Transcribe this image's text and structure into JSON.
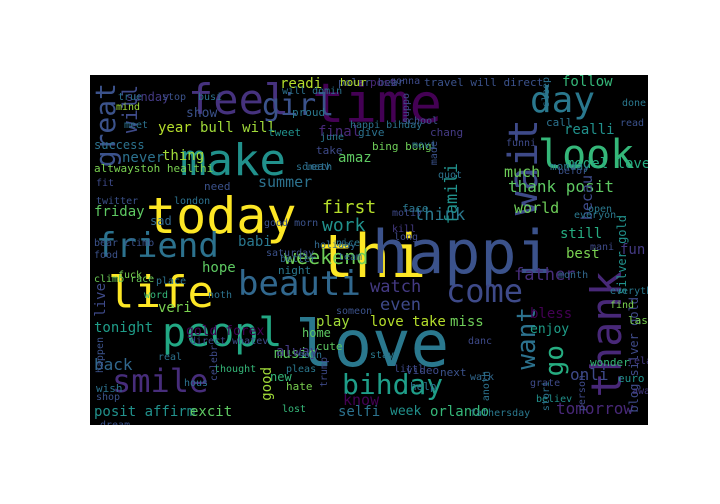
{
  "words": [
    {
      "text": "love",
      "c": "#2a788e"
    },
    {
      "text": "thi",
      "c": "#fde725"
    },
    {
      "text": "happi",
      "c": "#3b528b"
    },
    {
      "text": "today",
      "c": "#fde725"
    },
    {
      "text": "time",
      "c": "#440154"
    },
    {
      "text": "make",
      "c": "#21918c"
    },
    {
      "text": "life",
      "c": "#fde725"
    },
    {
      "text": "feel",
      "c": "#46327e"
    },
    {
      "text": "peopl",
      "c": "#22a884"
    },
    {
      "text": "friend",
      "c": "#2c728e"
    },
    {
      "text": "beauti",
      "c": "#31688e"
    },
    {
      "text": "smile",
      "c": "#472d7b"
    },
    {
      "text": "look",
      "c": "#35b779"
    },
    {
      "text": "day",
      "c": "#2a788e"
    },
    {
      "text": "come",
      "c": "#3e4a89"
    },
    {
      "text": "wait",
      "c": "#3e4a89"
    },
    {
      "text": "thank",
      "c": "#482878"
    },
    {
      "text": "girl",
      "c": "#3b528b"
    },
    {
      "text": "great",
      "c": "#3b528b"
    },
    {
      "text": "bihday",
      "c": "#1f9e89"
    },
    {
      "text": "want",
      "c": "#2c728e"
    },
    {
      "text": "go",
      "c": "#26ad81"
    },
    {
      "text": "weekend",
      "c": "#6ece58"
    },
    {
      "text": "thank posit",
      "c": "#5ec962"
    },
    {
      "text": "think",
      "c": "#2a788e"
    },
    {
      "text": "first",
      "c": "#b5de2b"
    },
    {
      "text": "work",
      "c": "#21918c"
    },
    {
      "text": "know",
      "c": "#440154"
    },
    {
      "text": "watch",
      "c": "#443a83"
    },
    {
      "text": "even",
      "c": "#3e4a89"
    },
    {
      "text": "father",
      "c": "#472d7b"
    },
    {
      "text": "summer",
      "c": "#2c728e"
    },
    {
      "text": "famili",
      "c": "#21918c"
    },
    {
      "text": "world",
      "c": "#6ece58"
    },
    {
      "text": "bull will",
      "c": "#a0da39"
    },
    {
      "text": "year",
      "c": "#b5de2b"
    },
    {
      "text": "thing",
      "c": "#a0da39"
    },
    {
      "text": "babi",
      "c": "#2a788e"
    },
    {
      "text": "hope",
      "c": "#5ec962"
    },
    {
      "text": "tonight",
      "c": "#1f9e89"
    },
    {
      "text": "back",
      "c": "#31688e"
    },
    {
      "text": "veri",
      "c": "#7ad151"
    },
    {
      "text": "music",
      "c": "#5ec962"
    },
    {
      "text": "play",
      "c": "#a0da39"
    },
    {
      "text": "love take",
      "c": "#b5de2b"
    },
    {
      "text": "miss",
      "c": "#6ece58"
    },
    {
      "text": "enjoy",
      "c": "#1f9e89"
    },
    {
      "text": "bless",
      "c": "#440154"
    },
    {
      "text": "best",
      "c": "#7ad151"
    },
    {
      "text": "still",
      "c": "#26ad81"
    },
    {
      "text": "onli",
      "c": "#3e4a89"
    },
    {
      "text": "tomorrow",
      "c": "#482878"
    },
    {
      "text": "week",
      "c": "#21918c"
    },
    {
      "text": "orlando",
      "c": "#35b779"
    },
    {
      "text": "selfi",
      "c": "#2c728e"
    },
    {
      "text": "posit affirm",
      "c": "#21918c"
    },
    {
      "text": "excit",
      "c": "#5ec962"
    },
    {
      "text": "good",
      "c": "#a0da39"
    },
    {
      "text": "new",
      "c": "#35b779"
    },
    {
      "text": "alway",
      "c": "#443a83"
    },
    {
      "text": "gold forex",
      "c": "#440154"
    },
    {
      "text": "blog silver gold",
      "c": "#3e4a89"
    },
    {
      "text": "silver gold",
      "c": "#21918c"
    },
    {
      "text": "live",
      "c": "#3e4a89"
    },
    {
      "text": "friday",
      "c": "#5ec962"
    },
    {
      "text": "never",
      "c": "#2c728e"
    },
    {
      "text": "show",
      "c": "#3b528b"
    },
    {
      "text": "sunday",
      "c": "#443a83"
    },
    {
      "text": "readi",
      "c": "#b5de2b"
    },
    {
      "text": "follow",
      "c": "#35b779"
    },
    {
      "text": "realli",
      "c": "#21918c"
    },
    {
      "text": "model love",
      "c": "#26ad81"
    },
    {
      "text": "final",
      "c": "#482878"
    },
    {
      "text": "amaz",
      "c": "#5ec962"
    },
    {
      "text": "will",
      "c": "#3e4a89"
    },
    {
      "text": "much",
      "c": "#6ece58"
    },
    {
      "text": "becau",
      "c": "#3e4a89"
    },
    {
      "text": "fun",
      "c": "#443a83"
    },
    {
      "text": "take",
      "c": "#3e4a89"
    },
    {
      "text": "home",
      "c": "#5ec962"
    },
    {
      "text": "success",
      "c": "#2c728e"
    },
    {
      "text": "altwaystoh healthi",
      "c": "#7ad151"
    },
    {
      "text": "polar bear",
      "c": "#3b528b"
    },
    {
      "text": "hour",
      "c": "#b5de2b"
    },
    {
      "text": "post",
      "c": "#482878"
    },
    {
      "text": "travel will direct",
      "c": "#3b528b"
    },
    {
      "text": "sad",
      "c": "#31688e"
    },
    {
      "text": "proud",
      "c": "#2a788e"
    },
    {
      "text": "tweet",
      "c": "#21918c"
    },
    {
      "text": "give",
      "c": "#2c728e"
    },
    {
      "text": "chang",
      "c": "#443a83"
    },
    {
      "text": "bing bong",
      "c": "#6ece58"
    },
    {
      "text": "leav",
      "c": "#31688e"
    },
    {
      "text": "face",
      "c": "#2a788e"
    },
    {
      "text": "need",
      "c": "#3b528b"
    },
    {
      "text": "cute",
      "c": "#5ec962"
    },
    {
      "text": "help",
      "c": "#2c728e"
    },
    {
      "text": "next",
      "c": "#3b528b"
    },
    {
      "text": "hate",
      "c": "#7ad151"
    },
    {
      "text": "thought",
      "c": "#35b779"
    },
    {
      "text": "wish",
      "c": "#2c728e"
    },
    {
      "text": "video",
      "c": "#3e4a89"
    },
    {
      "text": "night",
      "c": "#2a788e"
    },
    {
      "text": "holiday",
      "c": "#31688e"
    },
    {
      "text": "saturday",
      "c": "#3b528b"
    },
    {
      "text": "better",
      "c": "#31688e"
    },
    {
      "text": "call",
      "c": "#2c728e"
    },
    {
      "text": "monday",
      "c": "#2a788e"
    },
    {
      "text": "last",
      "c": "#7ad151"
    },
    {
      "text": "euro",
      "c": "#21918c"
    },
    {
      "text": "relax",
      "c": "#443a83"
    },
    {
      "text": "wonder",
      "c": "#35b779"
    },
    {
      "text": "believ",
      "c": "#21918c"
    },
    {
      "text": "fathersday",
      "c": "#2a788e"
    },
    {
      "text": "lost",
      "c": "#35b779"
    },
    {
      "text": "littl",
      "c": "#3e4a89"
    },
    {
      "text": "walk",
      "c": "#31688e"
    },
    {
      "text": "stay",
      "c": "#2a788e"
    },
    {
      "text": "dream",
      "c": "#3b528b"
    },
    {
      "text": "word",
      "c": "#35b779"
    },
    {
      "text": "real",
      "c": "#2c728e"
    },
    {
      "text": "fuck",
      "c": "#7ad151"
    },
    {
      "text": "place",
      "c": "#2c728e"
    },
    {
      "text": "direct whatev",
      "c": "#3e4a89"
    },
    {
      "text": "happen",
      "c": "#3b528b"
    },
    {
      "text": "celebr",
      "c": "#3e4a89"
    },
    {
      "text": "climb race",
      "c": "#6ece58"
    },
    {
      "text": "twitter",
      "c": "#3b528b"
    },
    {
      "text": "true",
      "c": "#2c728e"
    },
    {
      "text": "mind",
      "c": "#a0da39"
    },
    {
      "text": "stop",
      "c": "#3b528b"
    },
    {
      "text": "busi",
      "c": "#2c728e"
    },
    {
      "text": "meet",
      "c": "#2c728e"
    },
    {
      "text": "school",
      "c": "#3b528b"
    },
    {
      "text": "open",
      "c": "#2a788e"
    },
    {
      "text": "everyon",
      "c": "#2a788e"
    },
    {
      "text": "month",
      "c": "#31688e"
    },
    {
      "text": "away",
      "c": "#443a83"
    },
    {
      "text": "find",
      "c": "#7ad151"
    },
    {
      "text": "done",
      "c": "#2a788e"
    },
    {
      "text": "read",
      "c": "#3b528b"
    },
    {
      "text": "long",
      "c": "#3e4a89"
    },
    {
      "text": "movi",
      "c": "#2c728e"
    },
    {
      "text": "made",
      "c": "#3b528b"
    },
    {
      "text": "quot",
      "c": "#2c728e"
    },
    {
      "text": "mani",
      "c": "#3e4a89"
    },
    {
      "text": "hous",
      "c": "#2c728e"
    },
    {
      "text": "trump",
      "c": "#3e4a89"
    },
    {
      "text": "stori",
      "c": "#2c728e"
    },
    {
      "text": "grate",
      "c": "#3e4a89"
    },
    {
      "text": "anoth",
      "c": "#2c728e"
    },
    {
      "text": "everyth",
      "c": "#2a788e"
    },
    {
      "text": "befor",
      "c": "#3b528b"
    },
    {
      "text": "june",
      "c": "#2a788e"
    },
    {
      "text": "gonna",
      "c": "#3e4a89"
    },
    {
      "text": "shop",
      "c": "#3b528b"
    },
    {
      "text": "someth",
      "c": "#2c728e"
    },
    {
      "text": "motiv",
      "c": "#3e4a89"
    },
    {
      "text": "kill",
      "c": "#443a83"
    },
    {
      "text": "danc",
      "c": "#3e4a89"
    },
    {
      "text": "soon",
      "c": "#2c728e"
    },
    {
      "text": "pleas",
      "c": "#2a788e"
    },
    {
      "text": "funni",
      "c": "#3e4a89"
    },
    {
      "text": "food",
      "c": "#3b528b"
    },
    {
      "text": "london",
      "c": "#2c728e"
    },
    {
      "text": "sleep",
      "c": "#2c728e"
    },
    {
      "text": "team",
      "c": "#31688e"
    },
    {
      "text": "nice",
      "c": "#2a788e"
    },
    {
      "text": "fit",
      "c": "#3e4a89"
    },
    {
      "text": "happi bihday",
      "c": "#2c728e"
    },
    {
      "text": "suppo",
      "c": "#3e4a89"
    },
    {
      "text": "will domin",
      "c": "#2c728e"
    },
    {
      "text": "good morn",
      "c": "#3b528b"
    },
    {
      "text": "someon",
      "c": "#3b528b"
    },
    {
      "text": "person",
      "c": "#3e4a89"
    },
    {
      "text": "bear climb",
      "c": "#3b528b"
    },
    {
      "text": "noth",
      "c": "#2c728e"
    },
    {
      "text": "whatev want",
      "c": "#3e4a89"
    }
  ]
}
